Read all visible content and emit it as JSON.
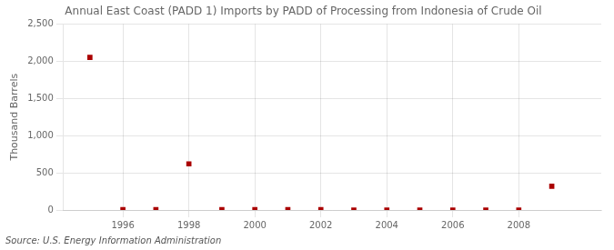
{
  "chart_data": {
    "type": "scatter",
    "title": "Annual East Coast (PADD 1) Imports by PADD of Processing from Indonesia of Crude Oil",
    "y_label": "Thousand Barrels",
    "annotations": [
      "Source: U.S. Energy Information Administration"
    ],
    "x": [
      1995,
      1996,
      1997,
      1998,
      1999,
      2000,
      2001,
      2002,
      2003,
      2004,
      2005,
      2006,
      2007,
      2008,
      2009
    ],
    "values": [
      2051,
      4,
      4,
      620,
      4,
      4,
      4,
      4,
      0,
      0,
      0,
      0,
      0,
      0,
      320
    ],
    "color": "#aa0000",
    "marker": "square",
    "xlim": [
      1994.2,
      2010.5
    ],
    "xticks": [
      1996,
      1998,
      2000,
      2002,
      2004,
      2006,
      2008
    ],
    "ylim": [
      0,
      2500
    ],
    "yticks": [
      0,
      500,
      {
        "value": 1000,
        "label": "1,000"
      },
      {
        "value": 1500,
        "label": "1,500"
      },
      {
        "value": 2000,
        "label": "2,000"
      },
      {
        "value": 2500,
        "label": "2,500"
      }
    ],
    "grid": true
  }
}
